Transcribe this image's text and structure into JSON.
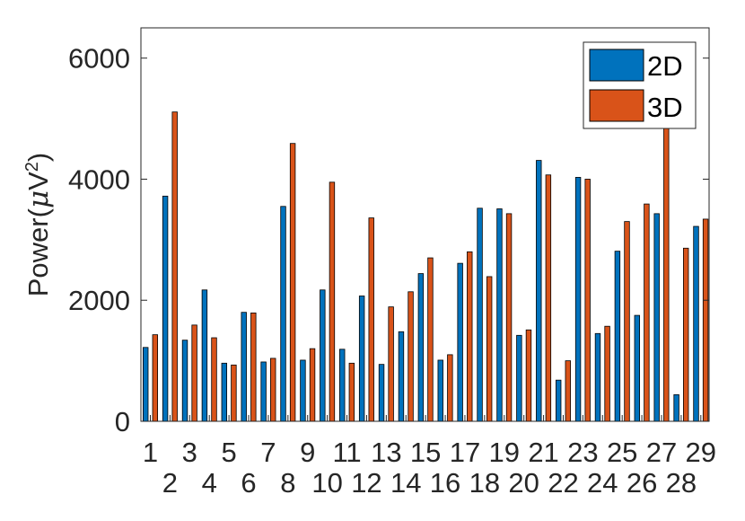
{
  "chart_data": {
    "type": "bar",
    "title": "",
    "xlabel": "",
    "ylabel": "Power(μV²)",
    "ylabel_parts": {
      "main": "Power(",
      "mu": "μ",
      "unit": "V",
      "exp": "2",
      "close": ")"
    },
    "ylim": [
      0,
      6500
    ],
    "yticks": [
      0,
      2000,
      4000,
      6000
    ],
    "ytick_labels": [
      "0",
      "2000",
      "4000",
      "6000"
    ],
    "categories": [
      "1",
      "2",
      "3",
      "4",
      "5",
      "6",
      "7",
      "8",
      "9",
      "10",
      "11",
      "12",
      "13",
      "14",
      "15",
      "16",
      "17",
      "18",
      "19",
      "20",
      "21",
      "22",
      "23",
      "24",
      "25",
      "26",
      "27",
      "28",
      "29"
    ],
    "series": [
      {
        "name": "2D",
        "color": "#0072BD",
        "values": [
          1220,
          3720,
          1340,
          2170,
          960,
          1800,
          980,
          3550,
          1010,
          2170,
          1190,
          2070,
          940,
          1480,
          2440,
          1010,
          2610,
          3520,
          3510,
          1420,
          4310,
          680,
          4030,
          1450,
          2810,
          1750,
          3430,
          440,
          3220
        ]
      },
      {
        "name": "3D",
        "color": "#D95319",
        "values": [
          1430,
          5110,
          1590,
          1380,
          930,
          1790,
          1040,
          4590,
          1200,
          3950,
          960,
          3360,
          1890,
          2140,
          2700,
          1100,
          2800,
          2390,
          3430,
          1510,
          4070,
          1000,
          4000,
          1570,
          3300,
          3590,
          5030,
          2860,
          3340
        ]
      }
    ],
    "legend_position": "top-right",
    "grid": false,
    "axis_box": true
  }
}
